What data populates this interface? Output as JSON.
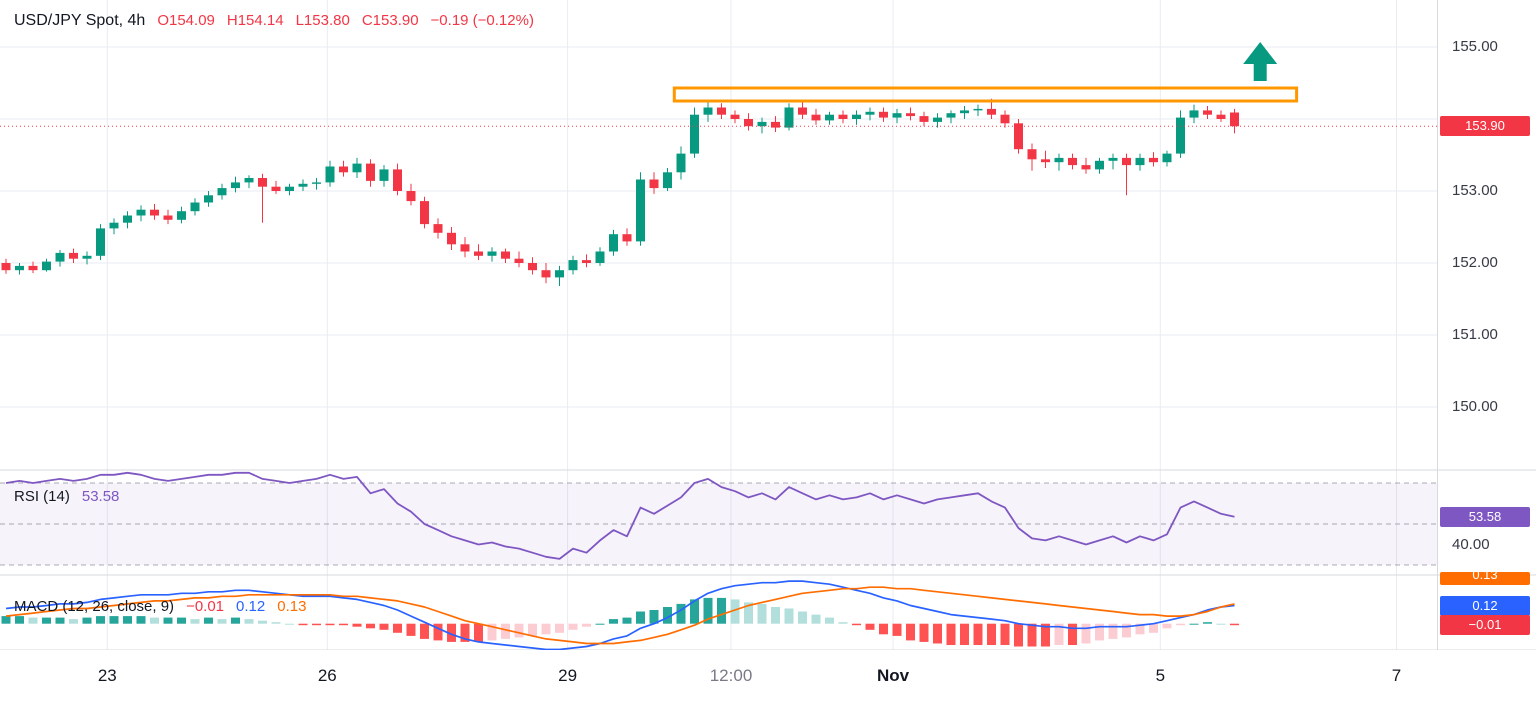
{
  "header": {
    "title": "USD/JPY Spot, 4h",
    "open": "O154.09",
    "high": "H154.14",
    "low": "L153.80",
    "close": "C153.90",
    "change": "−0.19 (−0.12%)",
    "value_color": "#f23645"
  },
  "rsi_legend": {
    "label": "RSI (14)",
    "value": "53.58"
  },
  "macd_legend": {
    "label": "MACD (12, 26, close, 9)",
    "hist": "−0.01",
    "macd": "0.12",
    "signal": "0.13"
  },
  "axis": {
    "price_badge": "153.90",
    "rsi_badge": "53.58",
    "rsi_level": "40.00",
    "macd_badge": "0.12",
    "hist_badge": "−0.01",
    "signal_badge": "0.13"
  },
  "chart_data": {
    "type": "candlestick",
    "symbol": "USD/JPY Spot",
    "interval": "4h",
    "last_close": 153.9,
    "up_color": "#089981",
    "down_color": "#f23645",
    "price_axis_ticks": [
      155,
      153,
      152,
      151,
      150
    ],
    "price_grid": [
      155,
      154,
      153,
      152,
      151,
      150
    ],
    "x_ticks": [
      {
        "label": "23",
        "i": 7.5
      },
      {
        "label": "26",
        "i": 23.8
      },
      {
        "label": "29",
        "i": 41.6
      },
      {
        "label": "12:00",
        "i": 53.7,
        "muted": true
      },
      {
        "label": "Nov",
        "i": 65.7,
        "bold": true
      },
      {
        "label": "5",
        "i": 85.5
      },
      {
        "label": "7",
        "i": 103
      }
    ],
    "candles": [
      [
        152.0,
        152.06,
        151.85,
        151.9
      ],
      [
        151.9,
        152.0,
        151.84,
        151.96
      ],
      [
        151.96,
        152.02,
        151.86,
        151.9
      ],
      [
        151.9,
        152.06,
        151.88,
        152.02
      ],
      [
        152.02,
        152.18,
        151.95,
        152.14
      ],
      [
        152.14,
        152.2,
        152.0,
        152.06
      ],
      [
        152.06,
        152.16,
        151.98,
        152.1
      ],
      [
        152.1,
        152.54,
        152.04,
        152.48
      ],
      [
        152.48,
        152.62,
        152.4,
        152.56
      ],
      [
        152.56,
        152.72,
        152.48,
        152.66
      ],
      [
        152.66,
        152.8,
        152.58,
        152.74
      ],
      [
        152.74,
        152.82,
        152.6,
        152.66
      ],
      [
        152.66,
        152.74,
        152.54,
        152.6
      ],
      [
        152.6,
        152.78,
        152.55,
        152.72
      ],
      [
        152.72,
        152.9,
        152.66,
        152.84
      ],
      [
        152.84,
        153.0,
        152.78,
        152.94
      ],
      [
        152.94,
        153.1,
        152.88,
        153.04
      ],
      [
        153.04,
        153.2,
        152.98,
        153.12
      ],
      [
        153.12,
        153.22,
        153.04,
        153.18
      ],
      [
        153.18,
        153.24,
        152.56,
        153.06
      ],
      [
        153.06,
        153.14,
        152.96,
        153.0
      ],
      [
        153.0,
        153.1,
        152.94,
        153.06
      ],
      [
        153.06,
        153.16,
        153.0,
        153.1
      ],
      [
        153.1,
        153.18,
        153.02,
        153.12
      ],
      [
        153.12,
        153.42,
        153.06,
        153.34
      ],
      [
        153.34,
        153.42,
        153.2,
        153.26
      ],
      [
        153.26,
        153.46,
        153.18,
        153.38
      ],
      [
        153.38,
        153.44,
        153.06,
        153.14
      ],
      [
        153.14,
        153.36,
        153.06,
        153.3
      ],
      [
        153.3,
        153.38,
        152.94,
        153.0
      ],
      [
        153.0,
        153.1,
        152.8,
        152.86
      ],
      [
        152.86,
        152.92,
        152.48,
        152.54
      ],
      [
        152.54,
        152.62,
        152.34,
        152.42
      ],
      [
        152.42,
        152.5,
        152.18,
        152.26
      ],
      [
        152.26,
        152.36,
        152.08,
        152.16
      ],
      [
        152.16,
        152.26,
        152.04,
        152.1
      ],
      [
        152.1,
        152.22,
        152.02,
        152.16
      ],
      [
        152.16,
        152.2,
        152.0,
        152.06
      ],
      [
        152.06,
        152.16,
        151.94,
        152.0
      ],
      [
        152.0,
        152.08,
        151.84,
        151.9
      ],
      [
        151.9,
        152.0,
        151.72,
        151.8
      ],
      [
        151.8,
        151.96,
        151.68,
        151.9
      ],
      [
        151.9,
        152.1,
        151.84,
        152.04
      ],
      [
        152.04,
        152.12,
        151.94,
        152.0
      ],
      [
        152.0,
        152.22,
        151.96,
        152.16
      ],
      [
        152.16,
        152.46,
        152.1,
        152.4
      ],
      [
        152.4,
        152.48,
        152.24,
        152.3
      ],
      [
        152.3,
        153.26,
        152.24,
        153.16
      ],
      [
        153.16,
        153.26,
        152.96,
        153.04
      ],
      [
        153.04,
        153.32,
        153.0,
        153.26
      ],
      [
        153.26,
        153.62,
        153.16,
        153.52
      ],
      [
        153.52,
        154.16,
        153.46,
        154.06
      ],
      [
        154.06,
        154.26,
        153.96,
        154.16
      ],
      [
        154.16,
        154.22,
        154.0,
        154.06
      ],
      [
        154.06,
        154.12,
        153.94,
        154.0
      ],
      [
        154.0,
        154.08,
        153.84,
        153.9
      ],
      [
        153.9,
        154.02,
        153.8,
        153.96
      ],
      [
        153.96,
        154.04,
        153.82,
        153.88
      ],
      [
        153.88,
        154.22,
        153.84,
        154.16
      ],
      [
        154.16,
        154.26,
        154.0,
        154.06
      ],
      [
        154.06,
        154.14,
        153.92,
        153.98
      ],
      [
        153.98,
        154.1,
        153.92,
        154.06
      ],
      [
        154.06,
        154.12,
        153.94,
        154.0
      ],
      [
        154.0,
        154.12,
        153.92,
        154.06
      ],
      [
        154.06,
        154.16,
        153.98,
        154.1
      ],
      [
        154.1,
        154.16,
        153.96,
        154.02
      ],
      [
        154.02,
        154.14,
        153.94,
        154.08
      ],
      [
        154.08,
        154.16,
        153.98,
        154.04
      ],
      [
        154.04,
        154.1,
        153.9,
        153.96
      ],
      [
        153.96,
        154.08,
        153.88,
        154.02
      ],
      [
        154.02,
        154.12,
        153.94,
        154.08
      ],
      [
        154.08,
        154.18,
        154.0,
        154.12
      ],
      [
        154.12,
        154.2,
        154.04,
        154.14
      ],
      [
        154.14,
        154.28,
        154.0,
        154.06
      ],
      [
        154.06,
        154.12,
        153.88,
        153.94
      ],
      [
        153.94,
        154.0,
        153.52,
        153.58
      ],
      [
        153.58,
        153.66,
        153.28,
        153.44
      ],
      [
        153.44,
        153.56,
        153.32,
        153.4
      ],
      [
        153.4,
        153.52,
        153.28,
        153.46
      ],
      [
        153.46,
        153.52,
        153.3,
        153.36
      ],
      [
        153.36,
        153.46,
        153.24,
        153.3
      ],
      [
        153.3,
        153.46,
        153.24,
        153.42
      ],
      [
        153.42,
        153.52,
        153.3,
        153.46
      ],
      [
        153.46,
        153.52,
        152.94,
        153.36
      ],
      [
        153.36,
        153.52,
        153.28,
        153.46
      ],
      [
        153.46,
        153.54,
        153.34,
        153.4
      ],
      [
        153.4,
        153.56,
        153.34,
        153.52
      ],
      [
        153.52,
        154.12,
        153.46,
        154.02
      ],
      [
        154.02,
        154.2,
        153.94,
        154.12
      ],
      [
        154.12,
        154.18,
        154.0,
        154.06
      ],
      [
        154.06,
        154.12,
        153.96,
        154.0
      ],
      [
        154.09,
        154.14,
        153.8,
        153.9
      ]
    ],
    "overlays": {
      "resistance_rect": {
        "i_start": 49.5,
        "i_end": 95.6,
        "price_top": 154.43,
        "price_bottom": 154.25,
        "color": "#ff9800"
      },
      "up_arrow": {
        "i": 92.9,
        "price_tip": 155.07,
        "color": "#089981"
      },
      "last_price_line": {
        "price": 153.9,
        "color": "#f23645"
      }
    },
    "rsi": {
      "period": 14,
      "color": "#7e57c2",
      "levels": [
        70,
        50,
        30
      ],
      "band": [
        70,
        30
      ],
      "axis_label": 40,
      "last": 53.58,
      "values": [
        70,
        71,
        70,
        71,
        72,
        71,
        72,
        74,
        74,
        75,
        74,
        72,
        71,
        72,
        73,
        74,
        74,
        75,
        75,
        72,
        71,
        70,
        71,
        72,
        74,
        72,
        73,
        65,
        67,
        60,
        56,
        50,
        47,
        44,
        42,
        40,
        41,
        39,
        38,
        36,
        34,
        33,
        38,
        36,
        42,
        47,
        44,
        58,
        55,
        59,
        63,
        70,
        72,
        68,
        66,
        63,
        65,
        62,
        68,
        65,
        62,
        64,
        62,
        63,
        65,
        62,
        64,
        62,
        60,
        62,
        63,
        64,
        65,
        61,
        58,
        48,
        43,
        42,
        44,
        42,
        40,
        42,
        44,
        41,
        44,
        42,
        45,
        58,
        61,
        58,
        55,
        53.58
      ]
    },
    "macd": {
      "params": "12, 26, close, 9",
      "last": {
        "hist": -0.01,
        "macd": 0.12,
        "signal": 0.13
      },
      "colors": {
        "macd": "#2962ff",
        "signal": "#ff6d00",
        "hist_pos": "#26a69a",
        "hist_pos_weak": "#b2dfdb",
        "hist_neg": "#ff5252",
        "hist_neg_weak": "#fcccd3"
      },
      "macd_line": [
        0.1,
        0.11,
        0.11,
        0.12,
        0.13,
        0.13,
        0.14,
        0.16,
        0.17,
        0.18,
        0.19,
        0.19,
        0.19,
        0.2,
        0.2,
        0.21,
        0.21,
        0.22,
        0.22,
        0.21,
        0.2,
        0.19,
        0.18,
        0.18,
        0.18,
        0.17,
        0.16,
        0.14,
        0.12,
        0.09,
        0.05,
        0.01,
        -0.03,
        -0.07,
        -0.1,
        -0.12,
        -0.13,
        -0.14,
        -0.15,
        -0.16,
        -0.17,
        -0.17,
        -0.16,
        -0.15,
        -0.13,
        -0.1,
        -0.08,
        -0.03,
        0.0,
        0.04,
        0.09,
        0.15,
        0.2,
        0.23,
        0.25,
        0.26,
        0.27,
        0.27,
        0.28,
        0.28,
        0.27,
        0.26,
        0.24,
        0.22,
        0.2,
        0.17,
        0.15,
        0.12,
        0.1,
        0.08,
        0.06,
        0.05,
        0.04,
        0.03,
        0.02,
        0.0,
        -0.01,
        -0.02,
        -0.02,
        -0.03,
        -0.03,
        -0.02,
        -0.02,
        -0.02,
        -0.01,
        0.0,
        0.02,
        0.04,
        0.06,
        0.09,
        0.11,
        0.12
      ],
      "signal_line": [
        0.05,
        0.06,
        0.07,
        0.08,
        0.09,
        0.1,
        0.1,
        0.11,
        0.12,
        0.13,
        0.14,
        0.15,
        0.15,
        0.16,
        0.17,
        0.17,
        0.18,
        0.18,
        0.19,
        0.19,
        0.19,
        0.19,
        0.19,
        0.19,
        0.19,
        0.18,
        0.18,
        0.17,
        0.16,
        0.15,
        0.13,
        0.11,
        0.08,
        0.05,
        0.02,
        0.0,
        -0.02,
        -0.04,
        -0.06,
        -0.08,
        -0.1,
        -0.11,
        -0.12,
        -0.13,
        -0.13,
        -0.13,
        -0.12,
        -0.11,
        -0.09,
        -0.07,
        -0.04,
        -0.01,
        0.03,
        0.06,
        0.09,
        0.12,
        0.14,
        0.16,
        0.18,
        0.2,
        0.21,
        0.22,
        0.23,
        0.23,
        0.24,
        0.24,
        0.23,
        0.23,
        0.22,
        0.21,
        0.2,
        0.19,
        0.18,
        0.17,
        0.16,
        0.15,
        0.14,
        0.13,
        0.12,
        0.11,
        0.1,
        0.09,
        0.08,
        0.07,
        0.06,
        0.06,
        0.05,
        0.05,
        0.06,
        0.08,
        0.11,
        0.13
      ]
    }
  }
}
